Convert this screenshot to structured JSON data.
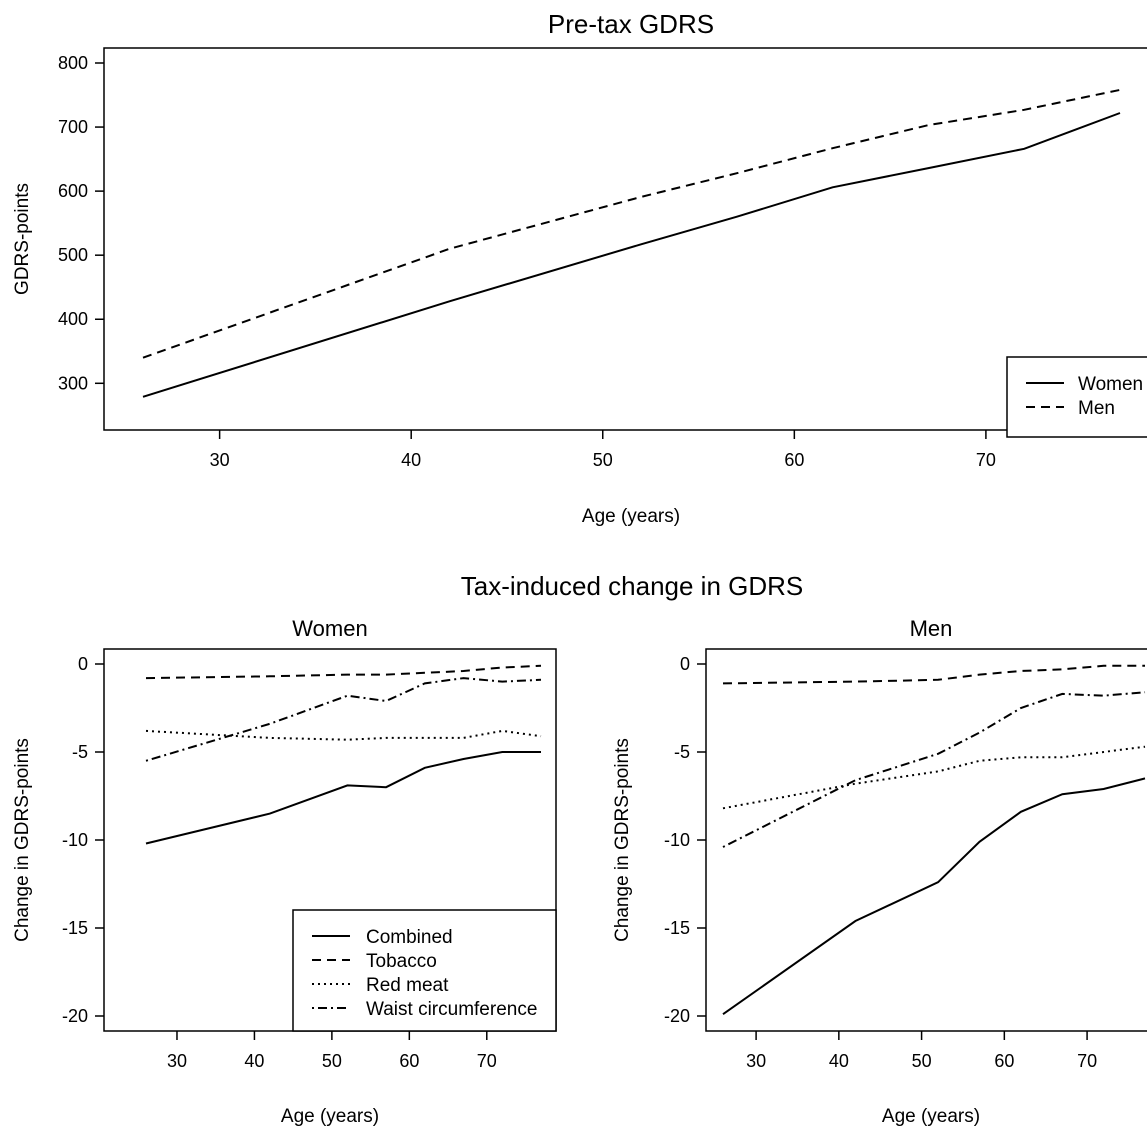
{
  "figure": {
    "main_title_bottom": "Tax-induced change in GDRS"
  },
  "chart_data": [
    {
      "id": "pretax",
      "type": "line",
      "title": "Pre-tax GDRS",
      "xlabel": "Age (years)",
      "ylabel": "GDRS-points",
      "xlim": [
        23.5,
        78.5
      ],
      "ylim": [
        270,
        830
      ],
      "xticks": [
        30,
        40,
        50,
        60,
        70
      ],
      "yticks": [
        300,
        400,
        500,
        600,
        700,
        800
      ],
      "x": [
        26,
        42,
        52,
        57,
        62,
        67,
        72,
        77
      ],
      "series": [
        {
          "name": "Women",
          "dash": "solid",
          "values": [
            279,
            428,
            517,
            560,
            606,
            636,
            666,
            722
          ]
        },
        {
          "name": "Men",
          "dash": "dashed",
          "values": [
            340,
            510,
            591,
            628,
            667,
            703,
            727,
            758
          ]
        }
      ],
      "legend": "bottom-right"
    },
    {
      "id": "women",
      "type": "line",
      "title": "Women",
      "xlabel": "Age (years)",
      "ylabel": "Change in GDRS-points",
      "xlim": [
        23.5,
        78.5
      ],
      "ylim": [
        -20.8,
        0.8
      ],
      "xticks": [
        30,
        40,
        50,
        60,
        70
      ],
      "yticks": [
        0,
        -5,
        -10,
        -15,
        -20
      ],
      "x": [
        26,
        42,
        52,
        57,
        62,
        67,
        72,
        77
      ],
      "series": [
        {
          "name": "Combined",
          "dash": "solid",
          "values": [
            -10.2,
            -8.5,
            -6.9,
            -7.0,
            -5.9,
            -5.4,
            -5.0,
            -5.0
          ]
        },
        {
          "name": "Tobacco",
          "dash": "dashed",
          "values": [
            -0.8,
            -0.7,
            -0.6,
            -0.6,
            -0.5,
            -0.4,
            -0.2,
            -0.1
          ]
        },
        {
          "name": "Red meat",
          "dash": "dotted",
          "values": [
            -3.8,
            -4.2,
            -4.3,
            -4.2,
            -4.2,
            -4.2,
            -3.8,
            -4.1
          ]
        },
        {
          "name": "Waist circumference",
          "dash": "dashdot",
          "values": [
            -5.5,
            -3.4,
            -1.8,
            -2.1,
            -1.1,
            -0.8,
            -1.0,
            -0.9
          ]
        }
      ],
      "legend": "bottom-right"
    },
    {
      "id": "men",
      "type": "line",
      "title": "Men",
      "xlabel": "Age (years)",
      "ylabel": "Change in GDRS-points",
      "xlim": [
        23.5,
        78.5
      ],
      "ylim": [
        -20.8,
        0.8
      ],
      "xticks": [
        30,
        40,
        50,
        60,
        70
      ],
      "yticks": [
        0,
        -5,
        -10,
        -15,
        -20
      ],
      "x": [
        26,
        42,
        52,
        57,
        62,
        67,
        72,
        77
      ],
      "series": [
        {
          "name": "Combined",
          "dash": "solid",
          "values": [
            -19.9,
            -14.6,
            -12.4,
            -10.1,
            -8.4,
            -7.4,
            -7.1,
            -6.5
          ]
        },
        {
          "name": "Tobacco",
          "dash": "dashed",
          "values": [
            -1.1,
            -1.0,
            -0.9,
            -0.6,
            -0.4,
            -0.3,
            -0.1,
            -0.1
          ]
        },
        {
          "name": "Red meat",
          "dash": "dotted",
          "values": [
            -8.2,
            -6.8,
            -6.1,
            -5.5,
            -5.3,
            -5.3,
            -5.0,
            -4.7
          ]
        },
        {
          "name": "Waist circumference",
          "dash": "dashdot",
          "values": [
            -10.4,
            -6.6,
            -5.1,
            -3.9,
            -2.5,
            -1.7,
            -1.8,
            -1.6
          ]
        }
      ]
    }
  ]
}
